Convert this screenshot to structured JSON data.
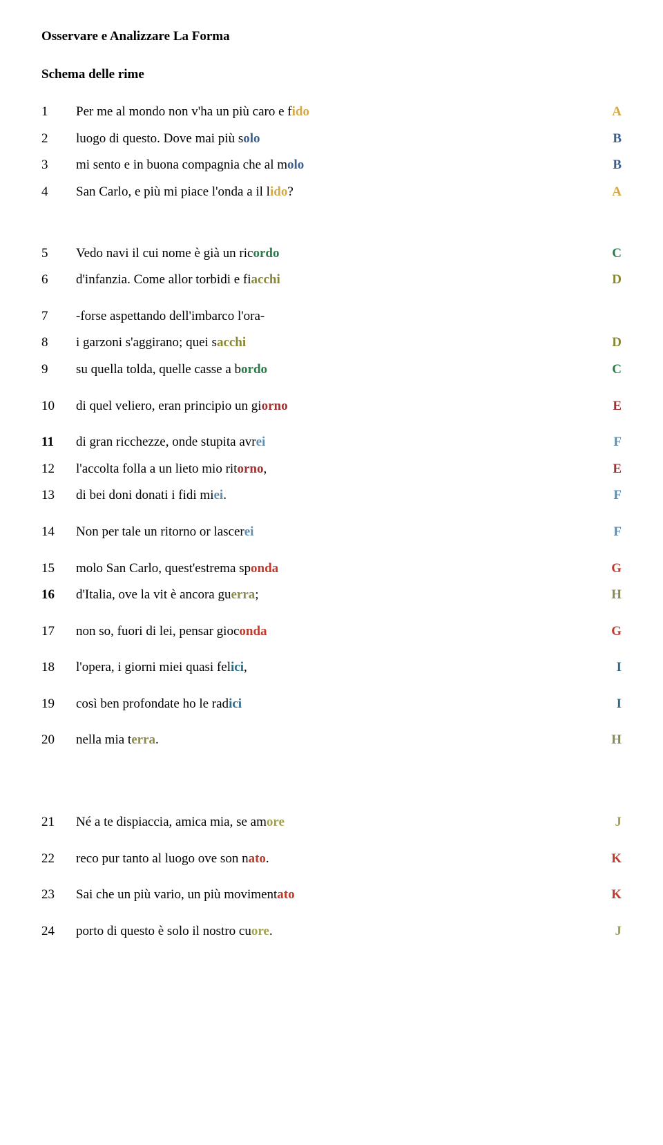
{
  "title": "Osservare e Analizzare La Forma",
  "subtitle": "Schema delle rime",
  "colors": {
    "A": "#d4a843",
    "B": "#3b5f8f",
    "C": "#2a7a4a",
    "D": "#888833",
    "E": "#a03030",
    "F": "#5f8db0",
    "G": "#c0392b",
    "H": "#8a8a4a",
    "I": "#2b6b8a",
    "J": "#a0a050",
    "K": "#c0392b"
  },
  "lines": [
    {
      "num": "1",
      "pre": "Per me al mondo non v'ha un più caro e f",
      "hi": "ido",
      "post": "",
      "letter": "A",
      "color": "#d4a843"
    },
    {
      "num": "2",
      "pre": "luogo di questo. Dove mai più s",
      "hi": "olo",
      "post": "",
      "letter": "B",
      "color": "#3b5f8f"
    },
    {
      "num": "3",
      "pre": "mi sento e in buona compagnia che al m",
      "hi": "olo",
      "post": "",
      "letter": "B",
      "color": "#3b5f8f"
    },
    {
      "num": "4",
      "pre": "San Carlo, e più mi piace l'onda a il l",
      "hi": "ido",
      "post": "?",
      "letter": "A",
      "color": "#d4a843"
    },
    {
      "num": "5",
      "pre": "Vedo navi il cui nome è già un ric",
      "hi": "ordo",
      "post": "",
      "letter": "C",
      "color": "#2a7a4a"
    },
    {
      "num": "6",
      "pre": "d'infanzia. Come allor torbidi e fi",
      "hi": "acchi",
      "post": "",
      "letter": "D",
      "color": "#888833"
    },
    {
      "num": "7",
      "pre": "-forse aspettando dell'imbarco l'ora-",
      "hi": "",
      "post": "",
      "letter": "",
      "color": ""
    },
    {
      "num": "8",
      "pre": "i garzoni s'aggirano; quei s",
      "hi": "acchi",
      "post": "",
      "letter": "D",
      "color": "#888833"
    },
    {
      "num": "9",
      "pre": "su quella tolda, quelle casse a b",
      "hi": "ordo",
      "post": "",
      "letter": "C",
      "color": "#2a7a4a"
    },
    {
      "num": "10",
      "pre": "di quel veliero, eran principio un gi",
      "hi": "orno",
      "post": "",
      "letter": "E",
      "color": "#a03030"
    },
    {
      "num": "11",
      "pre": "di gran ricchezze, onde stupita avr",
      "hi": "ei",
      "post": "",
      "letter": "F",
      "color": "#5f8db0",
      "numBold": true
    },
    {
      "num": "12",
      "pre": "l'accolta folla a un lieto mio rit",
      "hi": "orno",
      "post": ",",
      "letter": "E",
      "color": "#a03030"
    },
    {
      "num": "13",
      "pre": "di bei doni donati i fidi mi",
      "hi": "ei",
      "post": ".",
      "letter": "F",
      "color": "#5f8db0"
    },
    {
      "num": "14",
      "pre": "Non per tale un ritorno or lascer",
      "hi": "ei",
      "post": "",
      "letter": "F",
      "color": "#5f8db0"
    },
    {
      "num": "15",
      "pre": "molo San Carlo, quest'estrema sp",
      "hi": "onda",
      "post": "",
      "letter": "G",
      "color": "#c0392b"
    },
    {
      "num": "16",
      "pre": "d'Italia, ove la vit è ancora gu",
      "hi": "erra",
      "post": ";",
      "letter": "H",
      "color": "#8a8a4a",
      "numBold": true
    },
    {
      "num": "17",
      "pre": "non so, fuori di lei, pensar gioc",
      "hi": "onda",
      "post": "",
      "letter": "G",
      "color": "#c0392b"
    },
    {
      "num": "18",
      "pre": "l'opera, i giorni miei quasi fel",
      "hi": "ici",
      "post": ",",
      "letter": "I",
      "color": "#2b6b8a"
    },
    {
      "num": "19",
      "pre": "così ben profondate ho le rad",
      "hi": "ici",
      "post": "",
      "letter": "I",
      "color": "#2b6b8a"
    },
    {
      "num": "20",
      "pre": "nella mia t",
      "hi": "erra",
      "post": ".",
      "letter": "H",
      "color": "#8a8a4a"
    },
    {
      "num": "21",
      "pre": "Né a te dispiaccia, amica mia, se am",
      "hi": "ore",
      "post": "",
      "letter": "J",
      "color": "#a0a050"
    },
    {
      "num": "22",
      "pre": "reco pur tanto al luogo ove son n",
      "hi": "ato",
      "post": ".",
      "letter": "K",
      "color": "#c0392b"
    },
    {
      "num": "23",
      "pre": "Sai che un più vario, un più moviment",
      "hi": "ato",
      "post": "",
      "letter": "K",
      "color": "#c0392b"
    },
    {
      "num": "24",
      "pre": "porto di questo è solo il nostro cu",
      "hi": "ore",
      "post": ".",
      "letter": "J",
      "color": "#a0a050"
    }
  ],
  "gaps": {
    "after4": "stanza",
    "after6": "small",
    "after9": "small",
    "after10": "small",
    "after13": "small",
    "after14": "small",
    "after16": "small",
    "after17": "small",
    "after18": "small",
    "after19": "small",
    "after20": "stanza3",
    "after21": "small",
    "after22": "small",
    "after23": "small"
  }
}
